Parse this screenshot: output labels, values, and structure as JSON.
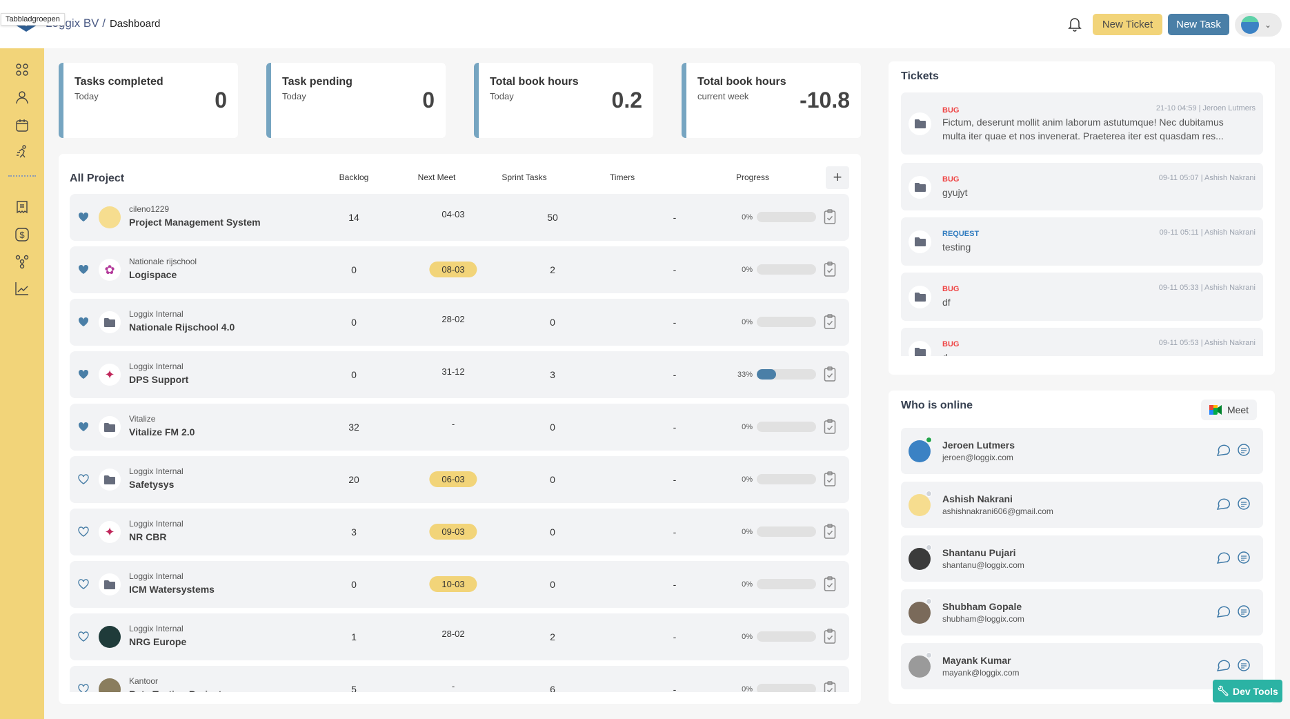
{
  "header": {
    "tooltip": "Tabbladgroepen",
    "company": "Loggix BV /",
    "page": "Dashboard",
    "new_ticket": "New Ticket",
    "new_task": "New Task"
  },
  "sidebar": {
    "icons": [
      "grid-icon",
      "user-icon",
      "calendar-icon",
      "running-icon",
      "receipt-icon",
      "dollar-icon",
      "team-icon",
      "chart-line-icon"
    ]
  },
  "stats": [
    {
      "title": "Tasks completed",
      "sub": "Today",
      "value": "0"
    },
    {
      "title": "Task pending",
      "sub": "Today",
      "value": "0"
    },
    {
      "title": "Total book hours",
      "sub": "Today",
      "value": "0.2"
    },
    {
      "title": "Total book hours",
      "sub": "current week",
      "value": "-10.8"
    }
  ],
  "projects": {
    "title": "All Project",
    "columns": {
      "backlog": "Backlog",
      "next_meet": "Next Meet",
      "sprint": "Sprint Tasks",
      "timers": "Timers",
      "progress": "Progress"
    },
    "add": "+",
    "rows": [
      {
        "org": "cileno1229",
        "name": "Project Management System",
        "backlog": "14",
        "meet": "04-03",
        "meet_hl": false,
        "sprint": "50",
        "timers": "-",
        "progress": "0%",
        "fav": true,
        "avatar": "person"
      },
      {
        "org": "Nationale rijschool",
        "name": "Logispace",
        "backlog": "0",
        "meet": "08-03",
        "meet_hl": true,
        "sprint": "2",
        "timers": "-",
        "progress": "0%",
        "fav": true,
        "avatar": "flower"
      },
      {
        "org": "Loggix Internal",
        "name": "Nationale Rijschool 4.0",
        "backlog": "0",
        "meet": "28-02",
        "meet_hl": false,
        "sprint": "0",
        "timers": "-",
        "progress": "0%",
        "fav": true,
        "avatar": "folder"
      },
      {
        "org": "Loggix Internal",
        "name": "DPS Support",
        "backlog": "0",
        "meet": "31-12",
        "meet_hl": false,
        "sprint": "3",
        "timers": "-",
        "progress": "33%",
        "fav": true,
        "avatar": "bird"
      },
      {
        "org": "Vitalize",
        "name": "Vitalize FM 2.0",
        "backlog": "32",
        "meet": "-",
        "meet_hl": false,
        "sprint": "0",
        "timers": "-",
        "progress": "0%",
        "fav": true,
        "avatar": "folder"
      },
      {
        "org": "Loggix Internal",
        "name": "Safetysys",
        "backlog": "20",
        "meet": "06-03",
        "meet_hl": true,
        "sprint": "0",
        "timers": "-",
        "progress": "0%",
        "fav": false,
        "avatar": "folder"
      },
      {
        "org": "Loggix Internal",
        "name": "NR CBR",
        "backlog": "3",
        "meet": "09-03",
        "meet_hl": true,
        "sprint": "0",
        "timers": "-",
        "progress": "0%",
        "fav": false,
        "avatar": "bird"
      },
      {
        "org": "Loggix Internal",
        "name": "ICM Watersystems",
        "backlog": "0",
        "meet": "10-03",
        "meet_hl": true,
        "sprint": "0",
        "timers": "-",
        "progress": "0%",
        "fav": false,
        "avatar": "folder"
      },
      {
        "org": "Loggix Internal",
        "name": "NRG Europe",
        "backlog": "1",
        "meet": "28-02",
        "meet_hl": false,
        "sprint": "2",
        "timers": "-",
        "progress": "0%",
        "fav": false,
        "avatar": "dark"
      },
      {
        "org": "Kantoor",
        "name": "Beta Testing Project",
        "backlog": "5",
        "meet": "-",
        "meet_hl": false,
        "sprint": "6",
        "timers": "-",
        "progress": "0%",
        "fav": false,
        "avatar": "photo"
      }
    ]
  },
  "tickets": {
    "title": "Tickets",
    "items": [
      {
        "type": "BUG",
        "meta": "21-10 04:59 | Jeroen Lutmers",
        "text": "Fictum, deserunt mollit anim laborum astutumque! Nec dubitamus multa iter quae et nos invenerat. Praeterea iter est quasdam res..."
      },
      {
        "type": "BUG",
        "meta": "09-11 05:07 | Ashish Nakrani",
        "text": "gyujyt"
      },
      {
        "type": "REQUEST",
        "meta": "09-11 05:11 | Ashish Nakrani",
        "text": "testing"
      },
      {
        "type": "BUG",
        "meta": "09-11 05:33 | Ashish Nakrani",
        "text": "df"
      },
      {
        "type": "BUG",
        "meta": "09-11 05:53 | Ashish Nakrani",
        "text": "d"
      }
    ]
  },
  "online": {
    "title": "Who is online",
    "meet": "Meet",
    "users": [
      {
        "name": "Jeroen Lutmers",
        "email": "jeroen@loggix.com",
        "online": true,
        "color": "#3b82c4"
      },
      {
        "name": "Ashish Nakrani",
        "email": "ashishnakrani606@gmail.com",
        "online": false,
        "color": "#f6dd8f"
      },
      {
        "name": "Shantanu Pujari",
        "email": "shantanu@loggix.com",
        "online": false,
        "color": "#3b3b3b"
      },
      {
        "name": "Shubham Gopale",
        "email": "shubham@loggix.com",
        "online": false,
        "color": "#7a6a5a"
      },
      {
        "name": "Mayank Kumar",
        "email": "mayank@loggix.com",
        "online": false,
        "color": "#9a9a9a"
      }
    ]
  },
  "dev_tools": "Dev Tools",
  "colors": {
    "accent_yellow": "#f2d479",
    "accent_blue": "#4a7fa7",
    "bug": "#ef4444",
    "request": "#2f7bbf",
    "devtools": "#2bb3a4"
  }
}
